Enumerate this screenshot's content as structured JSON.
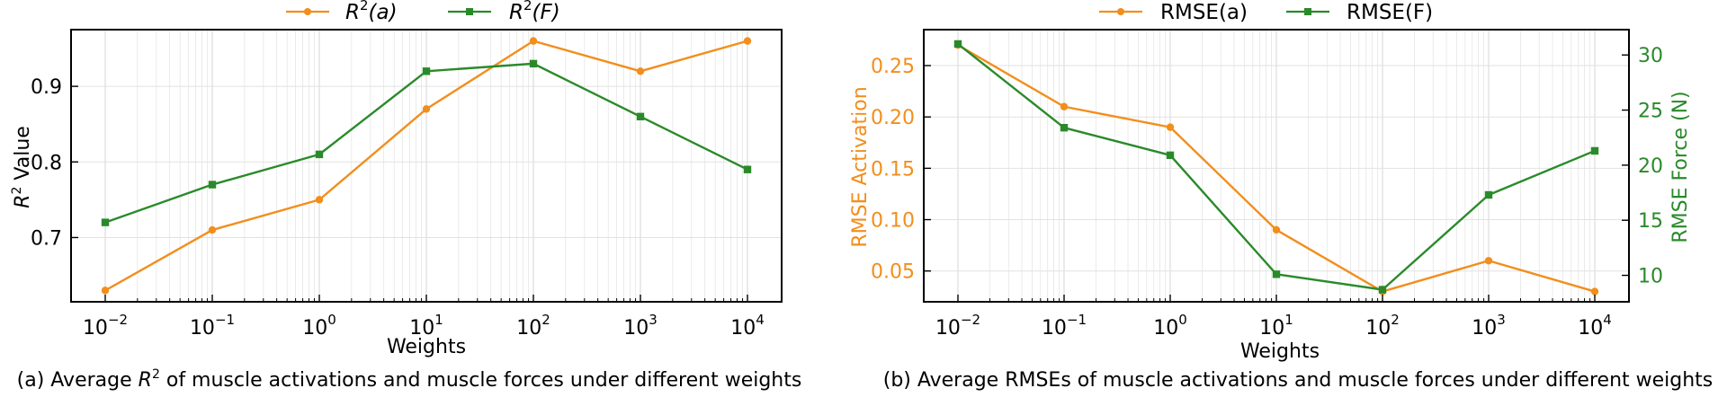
{
  "colors": {
    "orange": "#F28E1C",
    "green": "#2A8A2A",
    "axis": "#000000",
    "grid": "#DDDDDD"
  },
  "chart_data": [
    {
      "type": "line",
      "xscale": "log",
      "x": [
        0.01,
        0.1,
        1,
        10,
        100,
        1000,
        10000
      ],
      "xtick_labels": [
        {
          "base": "10",
          "exp": "−2"
        },
        {
          "base": "10",
          "exp": "−1"
        },
        {
          "base": "10",
          "exp": "0"
        },
        {
          "base": "10",
          "exp": "1"
        },
        {
          "base": "10",
          "exp": "2"
        },
        {
          "base": "10",
          "exp": "3"
        },
        {
          "base": "10",
          "exp": "4"
        }
      ],
      "xlabel": "Weights",
      "ylabel": {
        "base": "R",
        "sup": "2",
        "rest": " Value"
      },
      "ylim": [
        0.615,
        0.975
      ],
      "yticks": [
        0.7,
        0.8,
        0.9
      ],
      "ytick_labels": [
        "0.7",
        "0.8",
        "0.9"
      ],
      "grid": true,
      "legend": "top-center-outside",
      "series": [
        {
          "name": "R²(a)",
          "legend": {
            "base": "R",
            "sup": "2",
            "rest": "(a)"
          },
          "color": "#F28E1C",
          "marker": "circle",
          "values": [
            0.63,
            0.71,
            0.75,
            0.87,
            0.96,
            0.92,
            0.96
          ]
        },
        {
          "name": "R²(F)",
          "legend": {
            "base": "R",
            "sup": "2",
            "rest": "(F)"
          },
          "color": "#2A8A2A",
          "marker": "square",
          "values": [
            0.72,
            0.77,
            0.81,
            0.92,
            0.93,
            0.86,
            0.79
          ]
        }
      ],
      "caption": {
        "pre": "(a) Average ",
        "base": "R",
        "sup": "2",
        "post": " of muscle activations and muscle forces under different weights"
      }
    },
    {
      "type": "line",
      "xscale": "log",
      "x": [
        0.01,
        0.1,
        1,
        10,
        100,
        1000,
        10000
      ],
      "xtick_labels": [
        {
          "base": "10",
          "exp": "−2"
        },
        {
          "base": "10",
          "exp": "−1"
        },
        {
          "base": "10",
          "exp": "0"
        },
        {
          "base": "10",
          "exp": "1"
        },
        {
          "base": "10",
          "exp": "2"
        },
        {
          "base": "10",
          "exp": "3"
        },
        {
          "base": "10",
          "exp": "4"
        }
      ],
      "xlabel": "Weights",
      "ylabel_left": "RMSE Activation",
      "ylabel_right": "RMSE Force (N)",
      "ylim_left": [
        0.02,
        0.285
      ],
      "yticks_left": [
        0.05,
        0.1,
        0.15,
        0.2,
        0.25
      ],
      "ytick_labels_left": [
        "0.05",
        "0.10",
        "0.15",
        "0.20",
        "0.25"
      ],
      "ylim_right": [
        7.6,
        32.3
      ],
      "yticks_right": [
        10,
        15,
        20,
        25,
        30
      ],
      "ytick_labels_right": [
        "10",
        "15",
        "20",
        "25",
        "30"
      ],
      "grid": true,
      "legend": "top-center-outside",
      "series": [
        {
          "name": "RMSE(a)",
          "axis": "left",
          "color": "#F28E1C",
          "marker": "circle",
          "values": [
            0.27,
            0.21,
            0.19,
            0.09,
            0.03,
            0.06,
            0.03
          ]
        },
        {
          "name": "RMSE(F)",
          "axis": "right",
          "color": "#2A8A2A",
          "marker": "square",
          "values": [
            31.0,
            23.4,
            20.9,
            10.1,
            8.7,
            17.3,
            21.3
          ]
        }
      ],
      "caption": "(b) Average RMSEs of muscle activations and muscle forces under different weights"
    }
  ]
}
